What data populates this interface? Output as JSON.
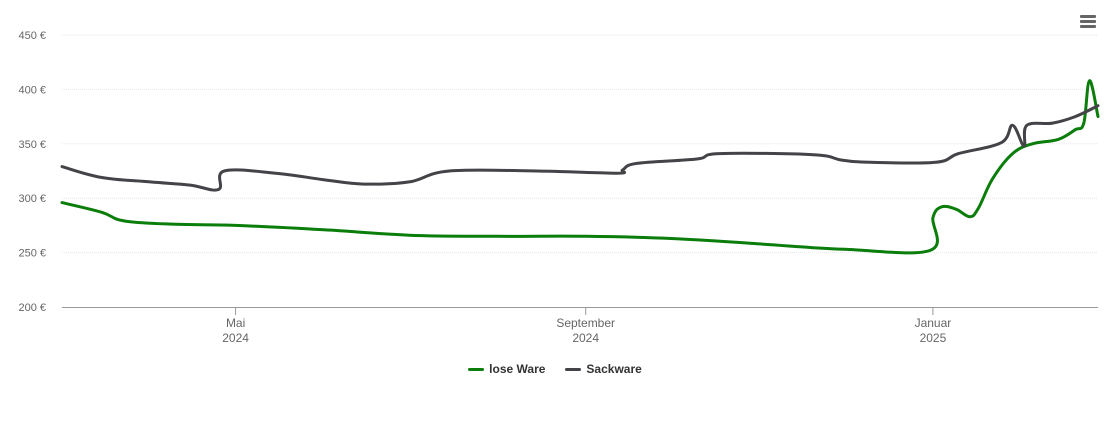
{
  "chart_data": {
    "type": "line",
    "title": "",
    "xlabel": "",
    "ylabel": "",
    "ylim": [
      200,
      450
    ],
    "y_ticks": [
      200,
      250,
      300,
      350,
      400,
      450
    ],
    "y_tick_suffix": " €",
    "x_range": [
      "2024-03-01",
      "2025-02-28"
    ],
    "x_ticks": [
      {
        "date": "2024-05-01",
        "label_month": "Mai",
        "label_year": "2024"
      },
      {
        "date": "2024-09-01",
        "label_month": "September",
        "label_year": "2024"
      },
      {
        "date": "2025-01-01",
        "label_month": "Januar",
        "label_year": "2025"
      }
    ],
    "grid": true,
    "legend_position": "bottom-center",
    "series": [
      {
        "name": "lose Ware",
        "color": "#0a7d0a",
        "points": [
          [
            "2024-03-01",
            296
          ],
          [
            "2024-03-15",
            287
          ],
          [
            "2024-03-23",
            279
          ],
          [
            "2024-04-10",
            276
          ],
          [
            "2024-05-01",
            275
          ],
          [
            "2024-06-01",
            271
          ],
          [
            "2024-07-01",
            266
          ],
          [
            "2024-08-01",
            265
          ],
          [
            "2024-09-01",
            265
          ],
          [
            "2024-10-01",
            263
          ],
          [
            "2024-11-01",
            258
          ],
          [
            "2024-12-01",
            253
          ],
          [
            "2024-12-31",
            252
          ],
          [
            "2025-01-01",
            282
          ],
          [
            "2025-01-04",
            292
          ],
          [
            "2025-01-09",
            290
          ],
          [
            "2025-01-14",
            283
          ],
          [
            "2025-01-17",
            291
          ],
          [
            "2025-01-22",
            318
          ],
          [
            "2025-01-29",
            341
          ],
          [
            "2025-02-05",
            350
          ],
          [
            "2025-02-14",
            354
          ],
          [
            "2025-02-20",
            363
          ],
          [
            "2025-02-23",
            369
          ],
          [
            "2025-02-25",
            408
          ],
          [
            "2025-02-28",
            375
          ]
        ]
      },
      {
        "name": "Sackware",
        "color": "#434348",
        "points": [
          [
            "2024-03-01",
            329
          ],
          [
            "2024-03-15",
            319
          ],
          [
            "2024-04-01",
            315
          ],
          [
            "2024-04-15",
            312
          ],
          [
            "2024-04-25",
            308
          ],
          [
            "2024-04-27",
            325
          ],
          [
            "2024-05-15",
            323
          ],
          [
            "2024-06-01",
            317
          ],
          [
            "2024-06-15",
            313
          ],
          [
            "2024-07-01",
            315
          ],
          [
            "2024-07-15",
            325
          ],
          [
            "2024-08-15",
            325
          ],
          [
            "2024-09-12",
            323
          ],
          [
            "2024-09-14",
            326
          ],
          [
            "2024-09-19",
            332
          ],
          [
            "2024-10-10",
            336
          ],
          [
            "2024-10-18",
            341
          ],
          [
            "2024-11-20",
            340
          ],
          [
            "2024-11-30",
            335
          ],
          [
            "2024-12-10",
            333
          ],
          [
            "2025-01-02",
            333
          ],
          [
            "2025-01-10",
            341
          ],
          [
            "2025-01-25",
            351
          ],
          [
            "2025-01-29",
            367
          ],
          [
            "2025-02-02",
            348
          ],
          [
            "2025-02-03",
            367
          ],
          [
            "2025-02-12",
            369
          ],
          [
            "2025-02-20",
            375
          ],
          [
            "2025-02-28",
            385
          ]
        ]
      }
    ]
  },
  "toolbar": {
    "menu_icon": "hamburger-menu-icon"
  }
}
